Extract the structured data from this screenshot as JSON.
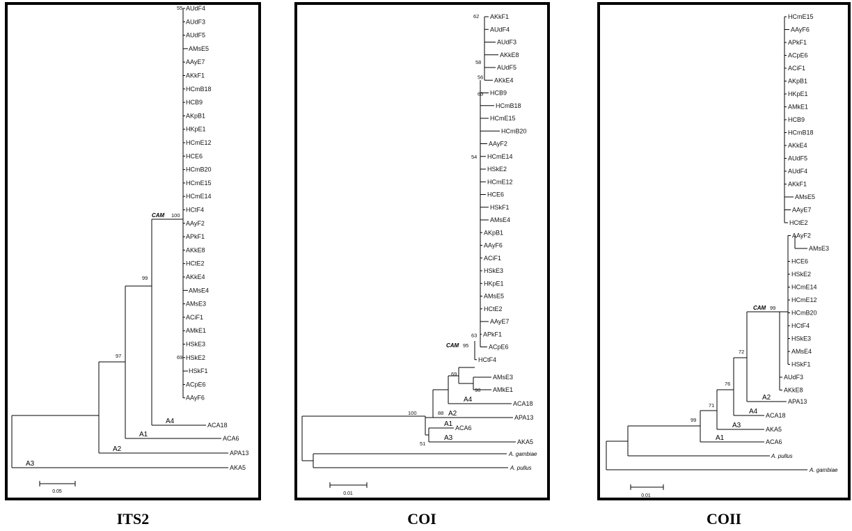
{
  "panels": [
    {
      "id": "its2",
      "caption": "ITS2",
      "scale_label": "0.05",
      "cam_label": "CAM",
      "cam_value": "100",
      "leaves": [
        "AUdF4",
        "AUdF3",
        "AUdF5",
        "AMsE5",
        "AAyE7",
        "AKkF1",
        "HCmB18",
        "HCB9",
        "AKpB1",
        "HKpE1",
        "HCmE12",
        "HCE6",
        "HCmB20",
        "HCmE15",
        "HCmE14",
        "HCtF4",
        "AAyF2",
        "APkF1",
        "AKkE8",
        "HCtE2",
        "AKkE4",
        "AMsE4",
        "AMsE3",
        "ACiF1",
        "AMkE1",
        "HSkE3",
        "HSkE2",
        "HSkF1",
        "ACpE6",
        "AAyF6"
      ],
      "outgroups": [
        "ACA18",
        "ACA6",
        "APA13",
        "AKA5"
      ],
      "clades": [
        "A4",
        "A1",
        "A2",
        "A3"
      ],
      "support": [
        "55",
        "69",
        "99",
        "97"
      ]
    },
    {
      "id": "coi",
      "caption": "COI",
      "scale_label": "0.01",
      "cam_label": "CAM",
      "cam_value": "95",
      "leaves": [
        "AKkF1",
        "AUdF4",
        "AUdF3",
        "AKkE8",
        "AUdF5",
        "AKkE4",
        "HCB9",
        "HCmB18",
        "HCmE15",
        "HCmB20",
        "AAyF2",
        "HCmE14",
        "HSkE2",
        "HCmE12",
        "HCE6",
        "HSkF1",
        "AMsE4",
        "AKpB1",
        "AAyF6",
        "ACiF1",
        "HSkE3",
        "HKpE1",
        "AMsE5",
        "HCtE2",
        "AAyE7",
        "APkF1",
        "ACpE6",
        "HCtF4"
      ],
      "subclade": [
        "AMsE3",
        "AMkE1"
      ],
      "outgroups": [
        "ACA18",
        "APA13",
        "ACA6",
        "AKA5"
      ],
      "clades": [
        "A4",
        "A2",
        "A1",
        "A3"
      ],
      "species": [
        "A. gambiae",
        "A. pullus"
      ],
      "support": [
        "62",
        "58",
        "56",
        "63",
        "54",
        "63",
        "69",
        "98",
        "88",
        "100",
        "51"
      ]
    },
    {
      "id": "coii",
      "caption": "COII",
      "scale_label": "0.01",
      "cam_label": "CAM",
      "cam_value": "99",
      "leaves": [
        "HCmE15",
        "AAyF6",
        "APkF1",
        "ACpE6",
        "ACiF1",
        "AKpB1",
        "HKpE1",
        "AMkE1",
        "HCB9",
        "HCmB18",
        "AKkE4",
        "AUdF5",
        "AUdF4",
        "AKkF1",
        "AMsE5",
        "AAyE7",
        "HCtE2",
        "AAyF2",
        "AMsE3",
        "HCE6",
        "HSkE2",
        "HCmE14",
        "HCmE12",
        "HCmB20",
        "HCtF4",
        "HSkE3",
        "AMsE4",
        "HSkF1",
        "AUdF3",
        "AKkE8"
      ],
      "outgroups": [
        "APA13",
        "ACA18",
        "AKA5",
        "ACA6"
      ],
      "clades": [
        "A2",
        "A4",
        "A3",
        "A1"
      ],
      "species": [
        "A. pullus",
        "A. gambiae"
      ],
      "support": [
        "72",
        "76",
        "71",
        "99"
      ]
    }
  ]
}
